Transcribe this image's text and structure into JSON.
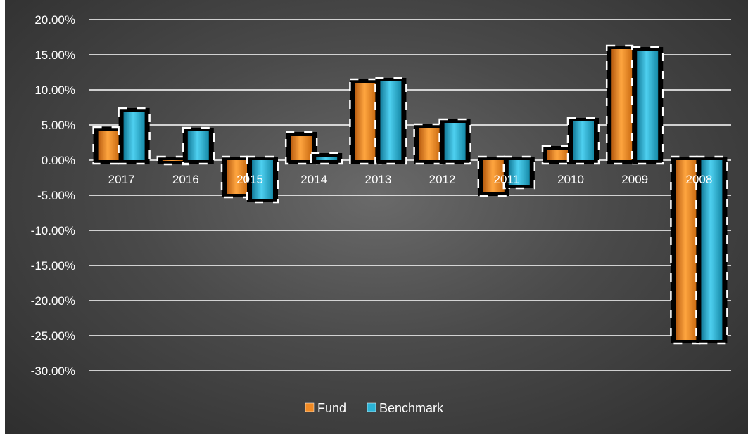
{
  "chart_data": {
    "type": "bar",
    "title": "",
    "xlabel": "",
    "ylabel": "",
    "categories": [
      "2017",
      "2016",
      "2015",
      "2014",
      "2013",
      "2012",
      "2011",
      "2010",
      "2009",
      "2008"
    ],
    "series": [
      {
        "name": "Fund",
        "color": "#f08a24",
        "values": [
          4.2,
          0.0,
          -4.8,
          3.5,
          11.0,
          4.6,
          -4.6,
          1.5,
          15.8,
          -25.6
        ]
      },
      {
        "name": "Benchmark",
        "color": "#2bb3d6",
        "values": [
          6.9,
          4.1,
          -5.5,
          0.5,
          11.2,
          5.3,
          -3.5,
          5.5,
          15.6,
          -25.6
        ]
      }
    ],
    "ylim": [
      -30,
      20
    ],
    "ytick_step": 5,
    "ytick_labels": [
      "20.00%",
      "15.00%",
      "10.00%",
      "5.00%",
      "0.00%",
      "-5.00%",
      "-10.00%",
      "-15.00%",
      "-20.00%",
      "-25.00%",
      "-30.00%"
    ],
    "grid": true,
    "legend_position": "bottom",
    "background": "#4a4a4a",
    "gridline_color": "#ffffff"
  }
}
